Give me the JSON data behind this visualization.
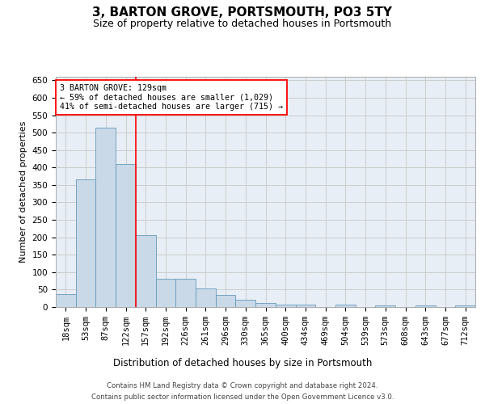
{
  "title": "3, BARTON GROVE, PORTSMOUTH, PO3 5TY",
  "subtitle": "Size of property relative to detached houses in Portsmouth",
  "xlabel": "Distribution of detached houses by size in Portsmouth",
  "ylabel": "Number of detached properties",
  "categories": [
    "18sqm",
    "53sqm",
    "87sqm",
    "122sqm",
    "157sqm",
    "192sqm",
    "226sqm",
    "261sqm",
    "296sqm",
    "330sqm",
    "365sqm",
    "400sqm",
    "434sqm",
    "469sqm",
    "504sqm",
    "539sqm",
    "573sqm",
    "608sqm",
    "643sqm",
    "677sqm",
    "712sqm"
  ],
  "values": [
    36,
    365,
    515,
    410,
    205,
    82,
    82,
    54,
    34,
    22,
    11,
    8,
    8,
    0,
    8,
    0,
    5,
    0,
    5,
    0,
    5
  ],
  "bar_color": "#c9d9e8",
  "bar_edge_color": "#6699bb",
  "annotation_text": "3 BARTON GROVE: 129sqm\n← 59% of detached houses are smaller (1,029)\n41% of semi-detached houses are larger (715) →",
  "vline_x": 3.5,
  "vline_color": "red",
  "annotation_box_color": "white",
  "annotation_box_edge": "red",
  "ylim": [
    0,
    660
  ],
  "yticks": [
    0,
    50,
    100,
    150,
    200,
    250,
    300,
    350,
    400,
    450,
    500,
    550,
    600,
    650
  ],
  "title_fontsize": 11,
  "subtitle_fontsize": 9,
  "xlabel_fontsize": 8.5,
  "ylabel_fontsize": 8,
  "tick_fontsize": 7.5,
  "footer_line1": "Contains HM Land Registry data © Crown copyright and database right 2024.",
  "footer_line2": "Contains public sector information licensed under the Open Government Licence v3.0.",
  "grid_color": "#cccccc",
  "background_color": "#e8eef5"
}
